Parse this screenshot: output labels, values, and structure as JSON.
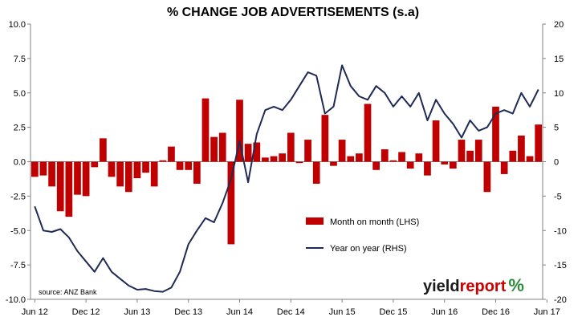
{
  "chart_data": {
    "type": "bar+line",
    "title": "% CHANGE JOB ADVERTISEMENTS (s.a)",
    "source": "source: ANZ Bank",
    "logo": {
      "part1": "yield",
      "part2": "report",
      "part3": "%"
    },
    "x_tick_labels": [
      "Jun 12",
      "Dec 12",
      "Jun 13",
      "Dec 13",
      "Jun 14",
      "Dec 14",
      "Jun 15",
      "Dec 15",
      "Jun 16",
      "Dec 16",
      "Jun 17"
    ],
    "left_axis": {
      "min": -10,
      "max": 10,
      "ticks": [
        "10.0",
        "7.5",
        "5.0",
        "2.5",
        "0.0",
        "-2.5",
        "-5.0",
        "-7.5",
        "-10.0"
      ]
    },
    "right_axis": {
      "min": -20,
      "max": 20,
      "ticks": [
        "20",
        "15",
        "10",
        "5",
        "0",
        "-5",
        "-10",
        "-15",
        "-20"
      ]
    },
    "colors": {
      "bar": "#c00000",
      "line": "#1f2a55",
      "axis": "#808080"
    },
    "series": [
      {
        "name": "Month on month (LHS)",
        "axis": "left",
        "type": "bar",
        "values": [
          -1.1,
          -1.0,
          -1.8,
          -3.6,
          -4.0,
          -2.4,
          -2.5,
          -0.4,
          1.7,
          -1.1,
          -1.8,
          -2.2,
          -1.2,
          -0.8,
          -1.8,
          0.1,
          1.1,
          -0.6,
          -0.6,
          -1.6,
          4.6,
          1.8,
          2.1,
          -6.0,
          4.5,
          1.3,
          1.4,
          0.3,
          0.4,
          0.6,
          2.1,
          -0.1,
          1.6,
          -1.6,
          3.4,
          -0.3,
          1.6,
          0.4,
          0.6,
          4.2,
          -0.6,
          0.9,
          0.1,
          0.7,
          -0.5,
          0.6,
          -1.0,
          3.0,
          -0.2,
          -0.5,
          1.6,
          0.8,
          1.6,
          -2.2,
          4.0,
          -0.9,
          0.8,
          1.9,
          0.4,
          2.7
        ]
      },
      {
        "name": "Year on year (RHS)",
        "axis": "right",
        "type": "line",
        "values": [
          -6.5,
          -10.0,
          -10.2,
          -9.8,
          -11.0,
          -13.0,
          -14.5,
          -16.0,
          -14.0,
          -16.0,
          -17.0,
          -18.0,
          -18.6,
          -18.5,
          -18.8,
          -18.9,
          -18.3,
          -16.0,
          -12.0,
          -10.0,
          -8.2,
          -8.8,
          -6.0,
          -2.5,
          3.0,
          -3.0,
          4.0,
          7.5,
          8.0,
          7.5,
          9.0,
          11.0,
          13.0,
          12.5,
          7.0,
          8.0,
          14.0,
          11.0,
          9.5,
          9.0,
          11.0,
          10.0,
          8.0,
          9.5,
          8.0,
          10.0,
          6.0,
          9.0,
          7.0,
          5.5,
          3.5,
          6.0,
          4.5,
          5.0,
          7.0,
          7.5,
          7.0,
          10.0,
          8.0,
          10.5
        ]
      }
    ]
  }
}
